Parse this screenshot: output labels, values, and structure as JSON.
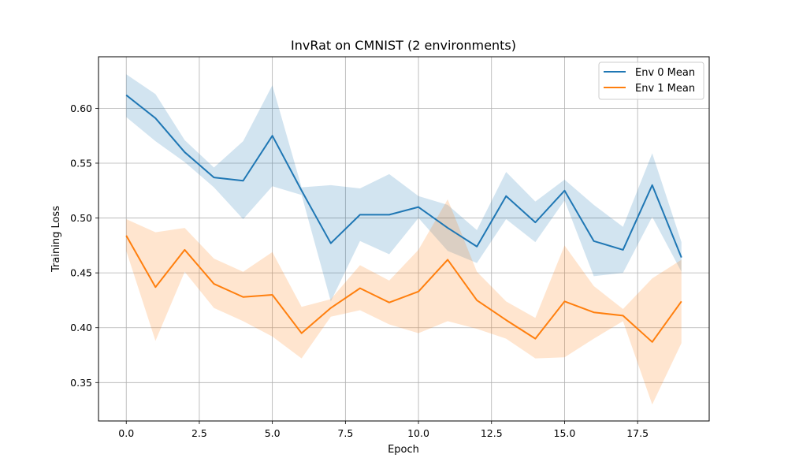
{
  "chart_data": {
    "type": "line",
    "title": "InvRat on CMNIST (2 environments)",
    "xlabel": "Epoch",
    "ylabel": "Training Loss",
    "xlim": [
      -0.95,
      19.95
    ],
    "ylim": [
      0.315,
      0.647
    ],
    "xticks": [
      "0.0",
      "2.5",
      "5.0",
      "7.5",
      "10.0",
      "12.5",
      "15.0",
      "17.5"
    ],
    "xtick_values": [
      0,
      2.5,
      5,
      7.5,
      10,
      12.5,
      15,
      17.5
    ],
    "yticks": [
      "0.35",
      "0.40",
      "0.45",
      "0.50",
      "0.55",
      "0.60"
    ],
    "ytick_values": [
      0.35,
      0.4,
      0.45,
      0.5,
      0.55,
      0.6
    ],
    "grid": true,
    "legend_position": "top-right",
    "x": [
      0,
      1,
      2,
      3,
      4,
      5,
      6,
      7,
      8,
      9,
      10,
      11,
      12,
      13,
      14,
      15,
      16,
      17,
      18,
      19
    ],
    "series": [
      {
        "name": "Env 0 Mean",
        "color": "#1f77b4",
        "band_color": "#1f77b4",
        "values": [
          0.612,
          0.591,
          0.56,
          0.537,
          0.534,
          0.575,
          0.525,
          0.477,
          0.503,
          0.503,
          0.51,
          0.491,
          0.474,
          0.52,
          0.496,
          0.525,
          0.479,
          0.471,
          0.53,
          0.464
        ],
        "upper": [
          0.631,
          0.613,
          0.571,
          0.546,
          0.57,
          0.621,
          0.528,
          0.53,
          0.527,
          0.54,
          0.52,
          0.512,
          0.489,
          0.542,
          0.515,
          0.535,
          0.512,
          0.492,
          0.559,
          0.478
        ],
        "lower": [
          0.592,
          0.57,
          0.551,
          0.528,
          0.499,
          0.529,
          0.521,
          0.424,
          0.479,
          0.467,
          0.5,
          0.47,
          0.459,
          0.499,
          0.478,
          0.516,
          0.447,
          0.45,
          0.501,
          0.451
        ]
      },
      {
        "name": "Env 1 Mean",
        "color": "#ff7f0e",
        "band_color": "#ff7f0e",
        "values": [
          0.484,
          0.437,
          0.471,
          0.44,
          0.428,
          0.43,
          0.395,
          0.418,
          0.436,
          0.423,
          0.433,
          0.462,
          0.425,
          0.407,
          0.39,
          0.424,
          0.414,
          0.411,
          0.387,
          0.424
        ],
        "upper": [
          0.499,
          0.487,
          0.491,
          0.463,
          0.451,
          0.469,
          0.419,
          0.426,
          0.457,
          0.443,
          0.471,
          0.517,
          0.451,
          0.424,
          0.409,
          0.475,
          0.438,
          0.417,
          0.445,
          0.462
        ],
        "lower": [
          0.47,
          0.388,
          0.451,
          0.418,
          0.406,
          0.392,
          0.372,
          0.41,
          0.416,
          0.403,
          0.395,
          0.406,
          0.399,
          0.39,
          0.372,
          0.373,
          0.39,
          0.406,
          0.33,
          0.386
        ]
      }
    ]
  }
}
